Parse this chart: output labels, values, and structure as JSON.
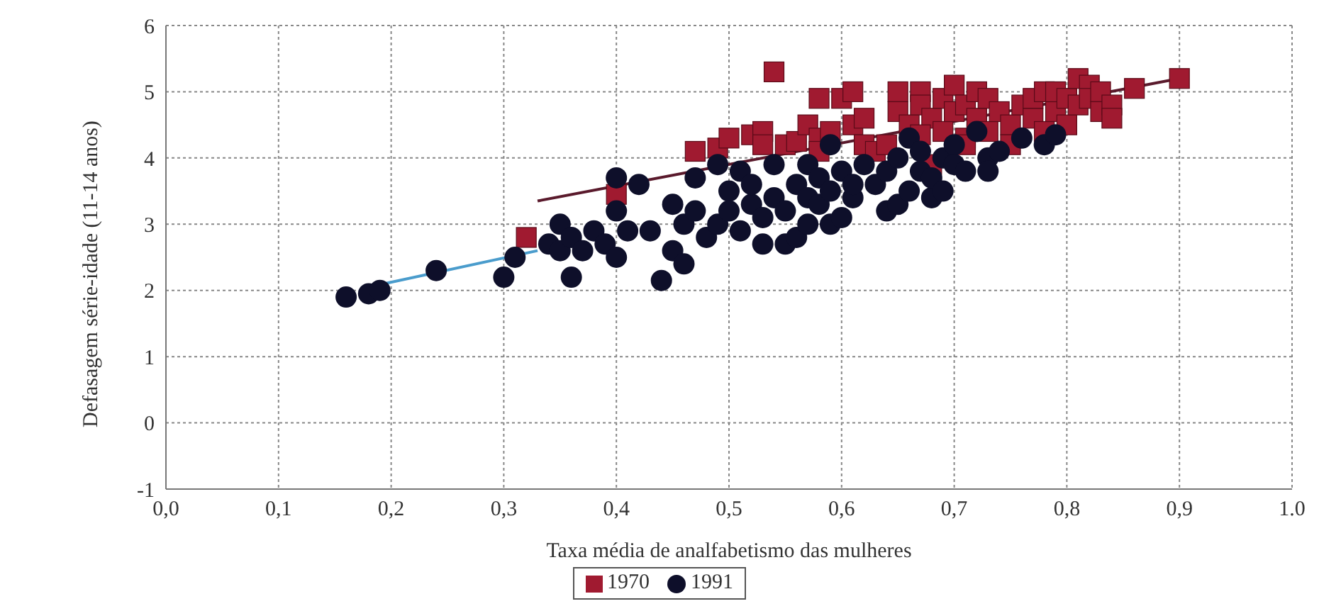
{
  "chart_data": {
    "type": "scatter",
    "xlabel": "Taxa média de analfabetismo  das mulheres",
    "ylabel": "Defasagem série-idade (11-14 anos)",
    "xlim": [
      0,
      1
    ],
    "xticks": [
      {
        "value": 0,
        "label": "0,0"
      },
      {
        "value": 0.1,
        "label": "0,1"
      },
      {
        "value": 0.2,
        "label": "0,2"
      },
      {
        "value": 0.3,
        "label": "0,3"
      },
      {
        "value": 0.4,
        "label": "0,4"
      },
      {
        "value": 0.5,
        "label": "0,5"
      },
      {
        "value": 0.6,
        "label": "0,6"
      },
      {
        "value": 0.7,
        "label": "0,7"
      },
      {
        "value": 0.8,
        "label": "0,8"
      },
      {
        "value": 0.9,
        "label": "0,9"
      },
      {
        "value": 1,
        "label": "1.0"
      }
    ],
    "ylim": [
      -1,
      6
    ],
    "yticks": [
      -1,
      0,
      1,
      2,
      3,
      4,
      5,
      6
    ],
    "grid": true,
    "legend": "bottom",
    "series": [
      {
        "name": "1970",
        "marker": "square",
        "color": "#a01a30",
        "x": [
          0.32,
          0.4,
          0.47,
          0.49,
          0.5,
          0.52,
          0.53,
          0.54,
          0.55,
          0.56,
          0.57,
          0.58,
          0.58,
          0.59,
          0.6,
          0.61,
          0.61,
          0.62,
          0.63,
          0.64,
          0.65,
          0.65,
          0.66,
          0.67,
          0.67,
          0.68,
          0.69,
          0.69,
          0.7,
          0.7,
          0.71,
          0.71,
          0.72,
          0.72,
          0.73,
          0.73,
          0.74,
          0.75,
          0.75,
          0.76,
          0.77,
          0.77,
          0.78,
          0.78,
          0.79,
          0.79,
          0.8,
          0.8,
          0.81,
          0.81,
          0.82,
          0.82,
          0.83,
          0.83,
          0.84,
          0.84,
          0.86,
          0.9,
          0.68,
          0.71,
          0.67,
          0.62,
          0.53,
          0.58
        ],
        "values": [
          2.8,
          3.45,
          4.1,
          4.15,
          4.3,
          4.35,
          4.4,
          5.3,
          4.2,
          4.25,
          4.5,
          4.9,
          4.3,
          4.4,
          4.9,
          5.0,
          4.5,
          4.2,
          4.1,
          4.2,
          5.0,
          4.7,
          4.5,
          5.0,
          4.8,
          4.6,
          4.4,
          4.9,
          5.1,
          4.7,
          4.8,
          4.3,
          5.0,
          4.6,
          4.9,
          4.4,
          4.7,
          4.5,
          4.2,
          4.8,
          4.6,
          4.9,
          5.0,
          4.4,
          4.7,
          5.0,
          4.5,
          4.9,
          5.2,
          4.8,
          5.1,
          4.9,
          5.0,
          4.7,
          4.8,
          4.6,
          5.05,
          5.2,
          3.9,
          4.2,
          4.35,
          4.6,
          4.2,
          4.1
        ]
      },
      {
        "name": "1991",
        "marker": "circle",
        "color": "#0e0f2a",
        "x": [
          0.16,
          0.18,
          0.19,
          0.24,
          0.3,
          0.31,
          0.34,
          0.35,
          0.35,
          0.36,
          0.36,
          0.37,
          0.38,
          0.39,
          0.4,
          0.4,
          0.4,
          0.41,
          0.42,
          0.43,
          0.44,
          0.45,
          0.45,
          0.46,
          0.46,
          0.47,
          0.47,
          0.48,
          0.49,
          0.49,
          0.5,
          0.5,
          0.51,
          0.51,
          0.52,
          0.52,
          0.53,
          0.53,
          0.54,
          0.54,
          0.55,
          0.55,
          0.56,
          0.56,
          0.57,
          0.57,
          0.57,
          0.58,
          0.58,
          0.59,
          0.59,
          0.59,
          0.6,
          0.6,
          0.61,
          0.61,
          0.62,
          0.63,
          0.64,
          0.64,
          0.65,
          0.65,
          0.66,
          0.66,
          0.67,
          0.67,
          0.68,
          0.68,
          0.69,
          0.69,
          0.7,
          0.7,
          0.71,
          0.72,
          0.73,
          0.73,
          0.74,
          0.76,
          0.78,
          0.79
        ],
        "values": [
          1.9,
          1.95,
          2.0,
          2.3,
          2.2,
          2.5,
          2.7,
          3.0,
          2.6,
          2.2,
          2.8,
          2.6,
          2.9,
          2.7,
          3.7,
          3.2,
          2.5,
          2.9,
          3.6,
          2.9,
          2.15,
          3.3,
          2.6,
          3.0,
          2.4,
          3.2,
          3.7,
          2.8,
          3.9,
          3.0,
          3.5,
          3.2,
          2.9,
          3.8,
          3.3,
          3.6,
          2.7,
          3.1,
          3.9,
          3.4,
          2.7,
          3.2,
          2.8,
          3.6,
          3.0,
          3.4,
          3.9,
          3.3,
          3.7,
          3.0,
          3.5,
          4.2,
          3.1,
          3.8,
          3.4,
          3.6,
          3.9,
          3.6,
          3.2,
          3.8,
          3.3,
          4.0,
          3.5,
          4.3,
          3.8,
          4.1,
          3.4,
          3.7,
          4.0,
          3.5,
          4.2,
          3.9,
          3.8,
          4.4,
          4.0,
          3.8,
          4.1,
          4.3,
          4.2,
          4.35
        ]
      },
      {
        "type": "line",
        "marker": "none",
        "color": "#5a1a2c",
        "x": [
          0.33,
          0.9
        ],
        "values": [
          3.35,
          5.2
        ]
      },
      {
        "type": "line",
        "marker": "none",
        "color": "#4a9ccc",
        "x": [
          0.18,
          0.33
        ],
        "values": [
          2.05,
          2.6
        ]
      }
    ]
  }
}
